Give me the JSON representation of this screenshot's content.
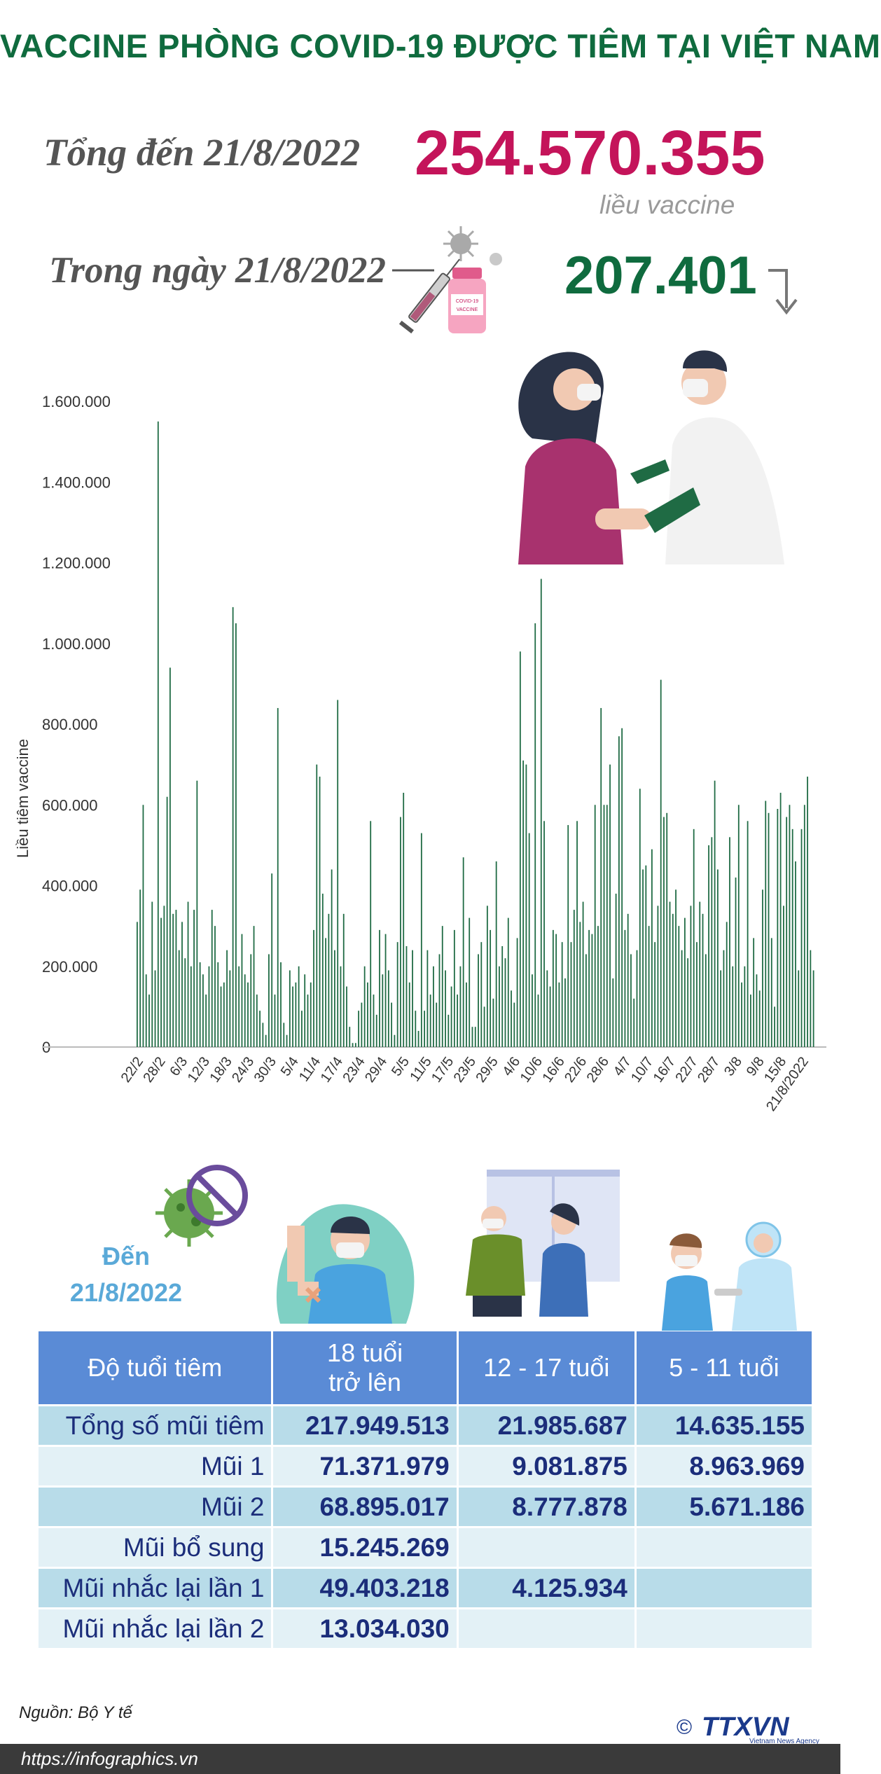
{
  "header": {
    "title": "VACCINE PHÒNG COVID-19 ĐƯỢC TIÊM TẠI VIỆT NAM",
    "total_label": "Tổng đến 21/8/2022",
    "total_value": "254.570.355",
    "total_unit": "liều vaccine",
    "today_label": "Trong ngày 21/8/2022",
    "today_value": "207.401",
    "trend": "down-arrow-icon"
  },
  "chart_data": {
    "type": "bar",
    "ylabel": "Liều tiêm vaccine",
    "ylim": [
      0,
      1600000
    ],
    "yticks": [
      "0",
      "200.000",
      "400.000",
      "600.000",
      "800.000",
      "1.000.000",
      "1.200.000",
      "1.400.000",
      "1.600.000"
    ],
    "xtick_labels": [
      "22/2",
      "28/2",
      "6/3",
      "12/3",
      "18/3",
      "24/3",
      "30/3",
      "5/4",
      "11/4",
      "17/4",
      "23/4",
      "29/4",
      "5/5",
      "11/5",
      "17/5",
      "23/5",
      "29/5",
      "4/6",
      "10/6",
      "16/6",
      "22/6",
      "28/6",
      "4/7",
      "10/7",
      "16/7",
      "22/7",
      "28/7",
      "3/8",
      "9/8",
      "15/8",
      "21/8/2022"
    ],
    "series": [
      {
        "color": "#1f6b44",
        "values": [
          310000,
          390000,
          600000,
          180000,
          130000,
          360000,
          190000,
          1550000,
          320000,
          350000,
          620000,
          940000,
          330000,
          340000,
          240000,
          310000,
          220000,
          360000,
          200000,
          340000,
          660000,
          210000,
          180000,
          130000,
          200000,
          340000,
          300000,
          210000,
          150000,
          160000,
          240000,
          190000,
          1090000,
          1050000,
          200000,
          280000,
          180000,
          160000,
          230000,
          300000,
          130000,
          90000,
          60000,
          30000,
          230000,
          430000,
          130000,
          840000,
          210000,
          60000,
          30000,
          190000,
          150000,
          160000,
          200000,
          90000,
          180000,
          130000,
          160000,
          290000,
          700000,
          670000,
          380000,
          270000,
          330000,
          440000,
          240000,
          860000,
          200000,
          330000,
          150000,
          50000,
          10000,
          10000,
          90000,
          110000,
          200000,
          160000,
          560000,
          130000,
          80000,
          290000,
          180000,
          280000,
          190000,
          110000,
          30000,
          260000,
          570000,
          630000,
          250000,
          160000,
          240000,
          90000,
          40000,
          530000,
          90000,
          240000,
          130000,
          200000,
          110000,
          230000,
          300000,
          190000,
          80000,
          150000,
          290000,
          130000,
          200000,
          470000,
          160000,
          320000,
          50000,
          50000,
          230000,
          260000,
          100000,
          350000,
          290000,
          120000,
          460000,
          200000,
          250000,
          220000,
          320000,
          140000,
          110000,
          270000,
          980000,
          710000,
          700000,
          530000,
          180000,
          1050000,
          130000,
          1160000,
          560000,
          190000,
          150000,
          290000,
          280000,
          160000,
          260000,
          170000,
          550000,
          260000,
          340000,
          560000,
          310000,
          360000,
          230000,
          290000,
          280000,
          600000,
          300000,
          840000,
          600000,
          600000,
          700000,
          170000,
          380000,
          770000,
          790000,
          290000,
          330000,
          230000,
          120000,
          240000,
          640000,
          440000,
          450000,
          300000,
          490000,
          260000,
          350000,
          910000,
          570000,
          580000,
          360000,
          330000,
          390000,
          300000,
          240000,
          320000,
          220000,
          350000,
          540000,
          260000,
          360000,
          330000,
          230000,
          500000,
          520000,
          660000,
          440000,
          190000,
          240000,
          310000,
          520000,
          200000,
          420000,
          600000,
          160000,
          200000,
          560000,
          130000,
          270000,
          180000,
          140000,
          390000,
          610000,
          580000,
          270000,
          100000,
          590000,
          630000,
          350000,
          570000,
          600000,
          540000,
          460000,
          190000,
          540000,
          600000,
          670000,
          240000,
          190000
        ]
      }
    ]
  },
  "age_section": {
    "date_label_1": "Đến",
    "date_label_2": "21/8/2022"
  },
  "table": {
    "headers": [
      "Độ tuổi tiêm",
      "18 tuổi\ntrở lên",
      "12 - 17 tuổi",
      "5 - 11 tuổi"
    ],
    "rows": [
      {
        "label": "Tổng số mũi tiêm",
        "values": [
          "217.949.513",
          "21.985.687",
          "14.635.155"
        ]
      },
      {
        "label": "Mũi 1",
        "values": [
          "71.371.979",
          "9.081.875",
          "8.963.969"
        ]
      },
      {
        "label": "Mũi 2",
        "values": [
          "68.895.017",
          "8.777.878",
          "5.671.186"
        ]
      },
      {
        "label": "Mũi bổ sung",
        "values": [
          "15.245.269",
          "",
          ""
        ]
      },
      {
        "label": "Mũi nhắc lại lần 1",
        "values": [
          "49.403.218",
          "4.125.934",
          ""
        ]
      },
      {
        "label": "Mũi nhắc lại lần 2",
        "values": [
          "13.034.030",
          "",
          ""
        ]
      }
    ]
  },
  "footer": {
    "source": "Nguồn: Bộ Y tế",
    "url": "https://infographics.vn",
    "logo_text": "TTXVN",
    "logo_subtext": "Vietnam News Agency",
    "copyright": "©"
  },
  "colors": {
    "title_green": "#0f6b3e",
    "total_magenta": "#c4145a",
    "bar_green": "#1f6b44",
    "table_header": "#5a8bd6",
    "row_dark": "#b8dce9",
    "row_light": "#e3f1f6"
  }
}
